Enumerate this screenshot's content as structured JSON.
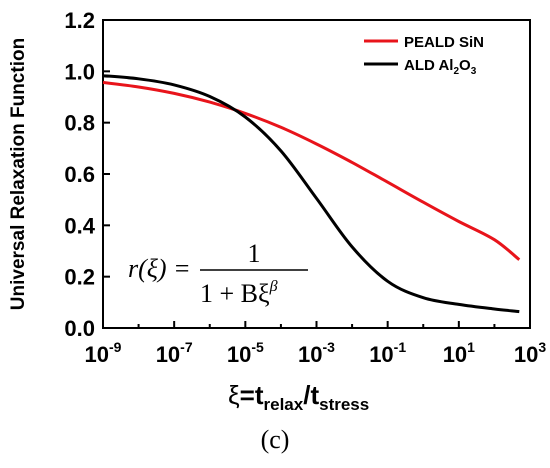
{
  "chart_data": {
    "type": "line",
    "title": "",
    "ylabel": "Universal Relaxation Function",
    "xlabel": {
      "xi": "ξ",
      "eq": "=",
      "t1": "t",
      "sub1": "relax",
      "slash": "/",
      "t2": "t",
      "sub2": "stress"
    },
    "xscale": "log",
    "xlim": [
      1e-09,
      1000
    ],
    "ylim": [
      0.0,
      1.2
    ],
    "xticks": [
      {
        "base": "10",
        "exp": "-9",
        "value": 1e-09
      },
      {
        "base": "10",
        "exp": "-7",
        "value": 1e-07
      },
      {
        "base": "10",
        "exp": "-5",
        "value": 1e-05
      },
      {
        "base": "10",
        "exp": "-3",
        "value": 0.001
      },
      {
        "base": "10",
        "exp": "-1",
        "value": 0.1
      },
      {
        "base": "10",
        "exp": "1",
        "value": 10
      },
      {
        "base": "10",
        "exp": "3",
        "value": 1000
      }
    ],
    "yticks": [
      "0.0",
      "0.2",
      "0.4",
      "0.6",
      "0.8",
      "1.0",
      "1.2"
    ],
    "legend_position": "top-right",
    "series": [
      {
        "name": "PEALD SiN",
        "color": "#e8141b",
        "x": [
          1e-09,
          1e-08,
          1e-07,
          1e-06,
          1e-05,
          0.0001,
          0.001,
          0.01,
          0.1,
          1,
          10,
          100,
          500
        ],
        "y": [
          0.957,
          0.939,
          0.914,
          0.88,
          0.836,
          0.782,
          0.717,
          0.645,
          0.568,
          0.49,
          0.415,
          0.344,
          0.266
        ]
      },
      {
        "name_parts": {
          "a": "ALD Al",
          "sub1": "2",
          "b": "O",
          "sub2": "3"
        },
        "color": "#000000",
        "x": [
          1e-09,
          1e-08,
          1e-07,
          1e-06,
          1e-05,
          0.0001,
          0.001,
          0.01,
          0.1,
          1,
          10,
          100,
          500
        ],
        "y": [
          0.983,
          0.971,
          0.947,
          0.902,
          0.822,
          0.69,
          0.505,
          0.316,
          0.182,
          0.118,
          0.092,
          0.074,
          0.064
        ]
      }
    ],
    "annotation": {
      "lhs": "r(ξ) =",
      "numerator": "1",
      "denominator": "1 + Bξ",
      "exponent": "β"
    }
  },
  "panel_label": "(c)"
}
